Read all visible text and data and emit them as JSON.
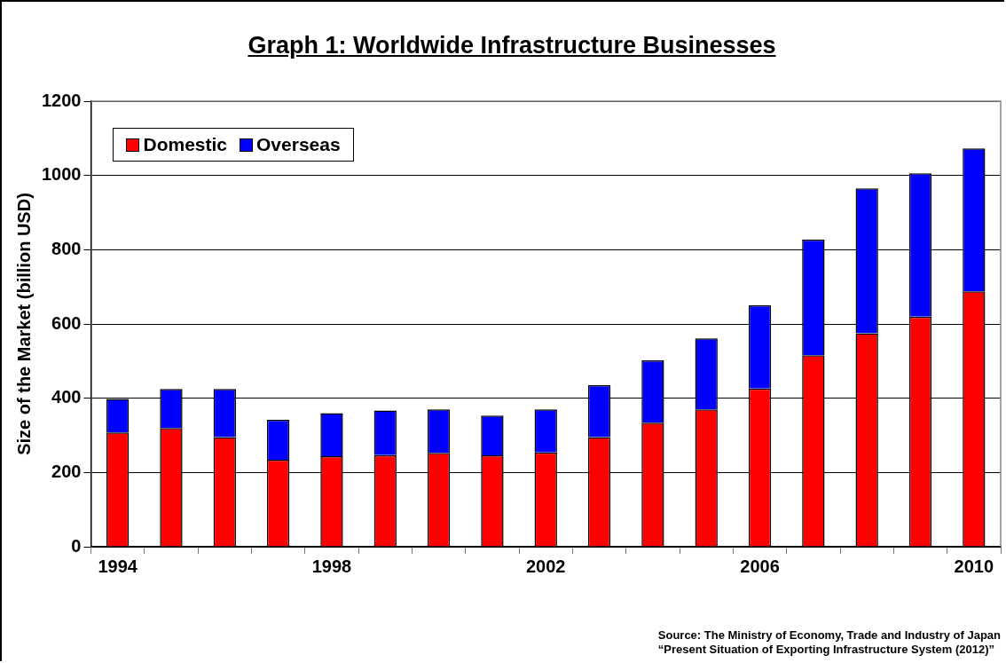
{
  "chart_data": {
    "type": "bar",
    "title": "Graph 1: Worldwide Infrastructure Businesses",
    "ylabel": "Size of the Market (billion USD)",
    "categories": [
      "1994",
      null,
      null,
      null,
      "1998",
      null,
      null,
      null,
      "2002",
      null,
      null,
      null,
      "2006",
      null,
      null,
      null,
      "2010"
    ],
    "series": [
      {
        "name": "Domestic",
        "color": "#ff0000",
        "values": [
          308,
          320,
          295,
          234,
          244,
          247,
          253,
          246,
          254,
          295,
          334,
          370,
          426,
          516,
          575,
          620,
          688
        ]
      },
      {
        "name": "Overseas",
        "color": "#0000ff",
        "values": [
          90,
          105,
          130,
          108,
          116,
          120,
          117,
          107,
          116,
          140,
          168,
          191,
          224,
          311,
          390,
          386,
          385
        ]
      }
    ],
    "stacked": true,
    "ylim": [
      0,
      1200
    ],
    "yticks": [
      0,
      200,
      400,
      600,
      800,
      1000,
      1200
    ],
    "grid": "y",
    "legend": "top left",
    "annotations": [
      "Source: The Ministry of Economy, Trade and Industry of Japan",
      "“Present Situation of Exporting Infrastructure System (2012)”"
    ]
  }
}
